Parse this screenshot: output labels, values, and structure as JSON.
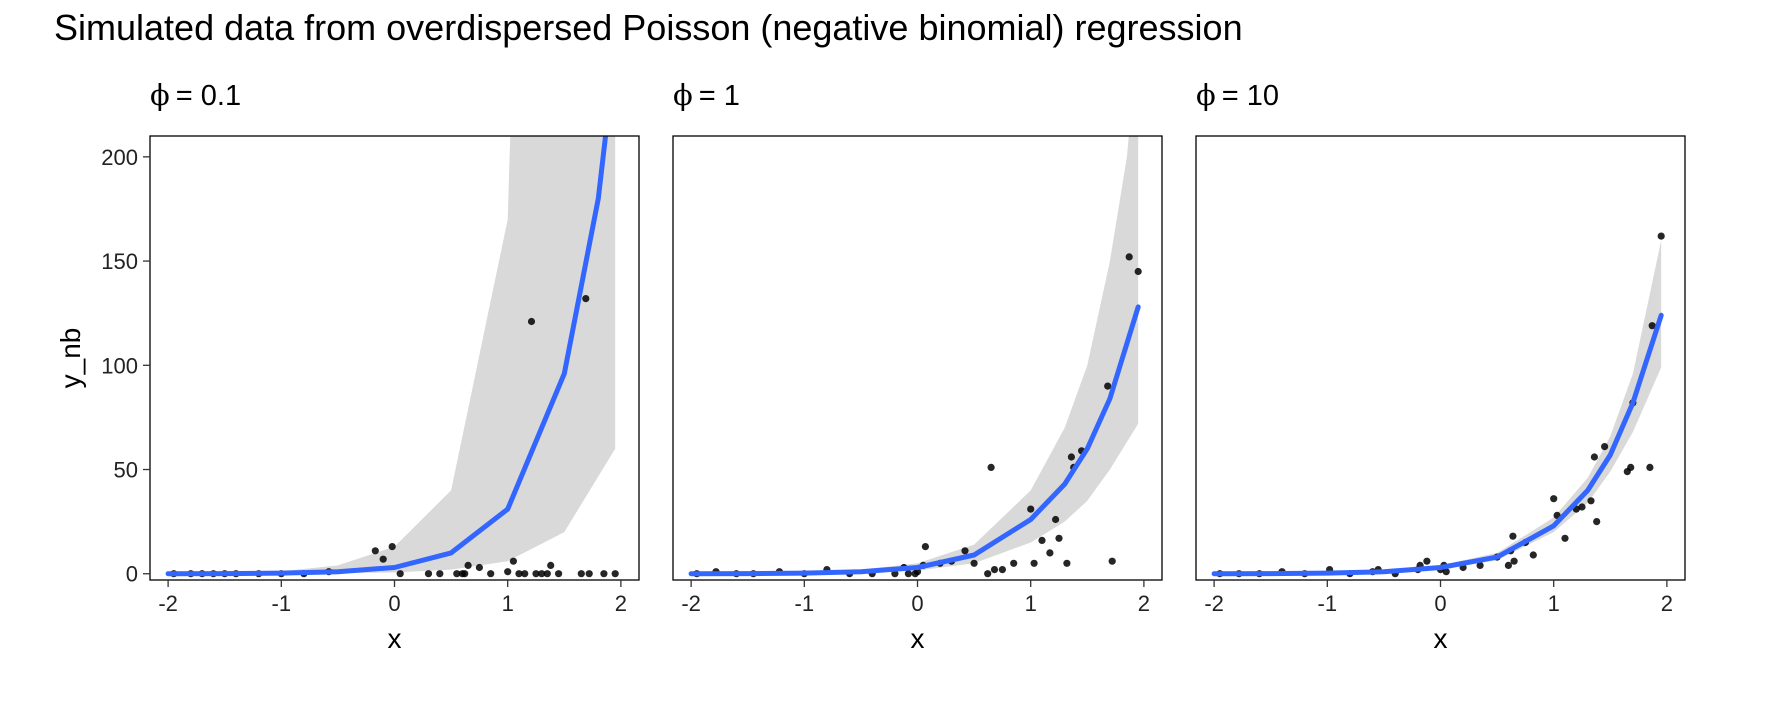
{
  "title": "Simulated data from overdispersed Poisson (negative binomial) regression",
  "chart_data": {
    "type": "scatter",
    "title": "Simulated data from overdispersed Poisson (negative binomial) regression",
    "xlabel": "x",
    "ylabel": "y_nb",
    "xlim": [
      -2.16,
      2.16
    ],
    "ylim": [
      -3,
      210
    ],
    "x_ticks": [
      "-2",
      "-1",
      "0",
      "1",
      "2"
    ],
    "y_ticks": [
      "0",
      "50",
      "100",
      "150",
      "200"
    ],
    "grid": false,
    "colors": {
      "fit": "#3366ff",
      "band": "#d9d9d9",
      "points": "#000000"
    },
    "panels": [
      {
        "label_symbol": "ϕ",
        "label_value": "= 0.1",
        "fit": {
          "x": [
            -2.0,
            -1.5,
            -1.0,
            -0.5,
            0.0,
            0.5,
            1.0,
            1.5,
            1.8,
            1.95
          ],
          "y": [
            0.02,
            0.08,
            0.3,
            1.0,
            3.0,
            10.0,
            31.0,
            96.0,
            180.0,
            250.0
          ]
        },
        "band_upper": {
          "x": [
            -2.0,
            -1.5,
            -1.0,
            -0.5,
            0.0,
            0.5,
            1.0,
            1.05,
            1.95
          ],
          "y": [
            0.05,
            0.3,
            1.2,
            4.0,
            13.0,
            40.0,
            170.0,
            260.0,
            260.0
          ]
        },
        "band_lower": {
          "x": [
            -2.0,
            -1.5,
            -1.0,
            -0.5,
            0.0,
            0.5,
            1.0,
            1.5,
            1.95
          ],
          "y": [
            0.0,
            0.02,
            0.08,
            0.2,
            0.6,
            2.0,
            6.0,
            20.0,
            60.0
          ]
        },
        "points": [
          [
            -1.95,
            0
          ],
          [
            -1.8,
            0
          ],
          [
            -1.7,
            0
          ],
          [
            -1.6,
            0
          ],
          [
            -1.5,
            0
          ],
          [
            -1.4,
            0
          ],
          [
            -1.2,
            0
          ],
          [
            -1.0,
            0
          ],
          [
            -0.8,
            0
          ],
          [
            -0.58,
            1
          ],
          [
            -0.17,
            11
          ],
          [
            -0.1,
            7
          ],
          [
            -0.02,
            13
          ],
          [
            0.05,
            0
          ],
          [
            0.3,
            0
          ],
          [
            0.4,
            0
          ],
          [
            0.55,
            0
          ],
          [
            0.6,
            0
          ],
          [
            0.62,
            0
          ],
          [
            0.65,
            4
          ],
          [
            0.75,
            3
          ],
          [
            0.85,
            0
          ],
          [
            1.0,
            1
          ],
          [
            1.05,
            6
          ],
          [
            1.1,
            0
          ],
          [
            1.15,
            0
          ],
          [
            1.21,
            121
          ],
          [
            1.25,
            0
          ],
          [
            1.3,
            0
          ],
          [
            1.35,
            0
          ],
          [
            1.38,
            4
          ],
          [
            1.45,
            0
          ],
          [
            1.65,
            0
          ],
          [
            1.69,
            132
          ],
          [
            1.72,
            0
          ],
          [
            1.85,
            0
          ],
          [
            1.95,
            0
          ]
        ]
      },
      {
        "label_symbol": "ϕ",
        "label_value": "= 1",
        "fit": {
          "x": [
            -2.0,
            -1.5,
            -1.0,
            -0.5,
            0.0,
            0.5,
            1.0,
            1.3,
            1.5,
            1.7,
            1.95
          ],
          "y": [
            0.02,
            0.08,
            0.3,
            1.0,
            3.0,
            9.0,
            26.0,
            43.0,
            60.0,
            84.0,
            128.0
          ]
        },
        "band_upper": {
          "x": [
            -2.0,
            -1.5,
            -1.0,
            -0.5,
            0.0,
            0.5,
            1.0,
            1.3,
            1.5,
            1.7,
            1.85,
            1.95
          ],
          "y": [
            0.05,
            0.2,
            0.7,
            2.0,
            5.0,
            14.0,
            40.0,
            70.0,
            100.0,
            150.0,
            200.0,
            260.0
          ]
        },
        "band_lower": {
          "x": [
            -2.0,
            -1.5,
            -1.0,
            -0.5,
            0.0,
            0.5,
            1.0,
            1.3,
            1.5,
            1.7,
            1.95
          ],
          "y": [
            0.0,
            0.03,
            0.1,
            0.4,
            1.5,
            5.0,
            15.0,
            25.0,
            35.0,
            50.0,
            72.0
          ]
        },
        "points": [
          [
            -1.95,
            0
          ],
          [
            -1.78,
            1
          ],
          [
            -1.6,
            0
          ],
          [
            -1.45,
            0
          ],
          [
            -1.22,
            1
          ],
          [
            -1.0,
            0
          ],
          [
            -0.8,
            2
          ],
          [
            -0.6,
            0
          ],
          [
            -0.4,
            0
          ],
          [
            -0.2,
            0
          ],
          [
            -0.12,
            3
          ],
          [
            -0.08,
            0
          ],
          [
            -0.02,
            0
          ],
          [
            0.0,
            1
          ],
          [
            0.05,
            4
          ],
          [
            0.07,
            13
          ],
          [
            0.2,
            5
          ],
          [
            0.3,
            6
          ],
          [
            0.42,
            11
          ],
          [
            0.5,
            5
          ],
          [
            0.62,
            0
          ],
          [
            0.65,
            51
          ],
          [
            0.68,
            2
          ],
          [
            0.75,
            2
          ],
          [
            0.85,
            5
          ],
          [
            1.0,
            31
          ],
          [
            1.03,
            5
          ],
          [
            1.1,
            16
          ],
          [
            1.17,
            10
          ],
          [
            1.22,
            26
          ],
          [
            1.25,
            17
          ],
          [
            1.32,
            5
          ],
          [
            1.36,
            56
          ],
          [
            1.38,
            51
          ],
          [
            1.45,
            59
          ],
          [
            1.68,
            90
          ],
          [
            1.72,
            6
          ],
          [
            1.87,
            152
          ],
          [
            1.95,
            145
          ]
        ]
      },
      {
        "label_symbol": "ϕ",
        "label_value": "= 10",
        "fit": {
          "x": [
            -2.0,
            -1.5,
            -1.0,
            -0.5,
            0.0,
            0.5,
            1.0,
            1.3,
            1.5,
            1.7,
            1.95
          ],
          "y": [
            0.02,
            0.08,
            0.3,
            1.0,
            3.0,
            8.0,
            23.0,
            40.0,
            57.0,
            82.0,
            124.0
          ]
        },
        "band_upper": {
          "x": [
            -2.0,
            -1.5,
            -1.0,
            -0.5,
            0.0,
            0.5,
            1.0,
            1.3,
            1.5,
            1.7,
            1.95
          ],
          "y": [
            0.03,
            0.12,
            0.45,
            1.5,
            4.0,
            10.0,
            27.0,
            46.0,
            66.0,
            96.0,
            160.0
          ]
        },
        "band_lower": {
          "x": [
            -2.0,
            -1.5,
            -1.0,
            -0.5,
            0.0,
            0.5,
            1.0,
            1.3,
            1.5,
            1.7,
            1.95
          ],
          "y": [
            0.01,
            0.05,
            0.2,
            0.7,
            2.2,
            6.5,
            20.0,
            34.0,
            49.0,
            68.0,
            99.0
          ]
        },
        "points": [
          [
            -1.95,
            0
          ],
          [
            -1.78,
            0
          ],
          [
            -1.6,
            0
          ],
          [
            -1.4,
            1
          ],
          [
            -1.2,
            0
          ],
          [
            -0.98,
            2
          ],
          [
            -0.8,
            0
          ],
          [
            -0.6,
            1
          ],
          [
            -0.55,
            2
          ],
          [
            -0.4,
            0
          ],
          [
            -0.2,
            2
          ],
          [
            -0.18,
            4
          ],
          [
            -0.12,
            6
          ],
          [
            0.0,
            2
          ],
          [
            0.03,
            4
          ],
          [
            0.05,
            1
          ],
          [
            0.2,
            3
          ],
          [
            0.35,
            4
          ],
          [
            0.5,
            8
          ],
          [
            0.6,
            4
          ],
          [
            0.62,
            11
          ],
          [
            0.64,
            18
          ],
          [
            0.65,
            6
          ],
          [
            0.75,
            15
          ],
          [
            0.82,
            9
          ],
          [
            1.0,
            36
          ],
          [
            1.03,
            28
          ],
          [
            1.1,
            17
          ],
          [
            1.2,
            31
          ],
          [
            1.25,
            32
          ],
          [
            1.33,
            35
          ],
          [
            1.36,
            56
          ],
          [
            1.38,
            25
          ],
          [
            1.45,
            61
          ],
          [
            1.65,
            49
          ],
          [
            1.68,
            51
          ],
          [
            1.7,
            82
          ],
          [
            1.85,
            51
          ],
          [
            1.87,
            119
          ],
          [
            1.95,
            162
          ]
        ]
      }
    ]
  }
}
